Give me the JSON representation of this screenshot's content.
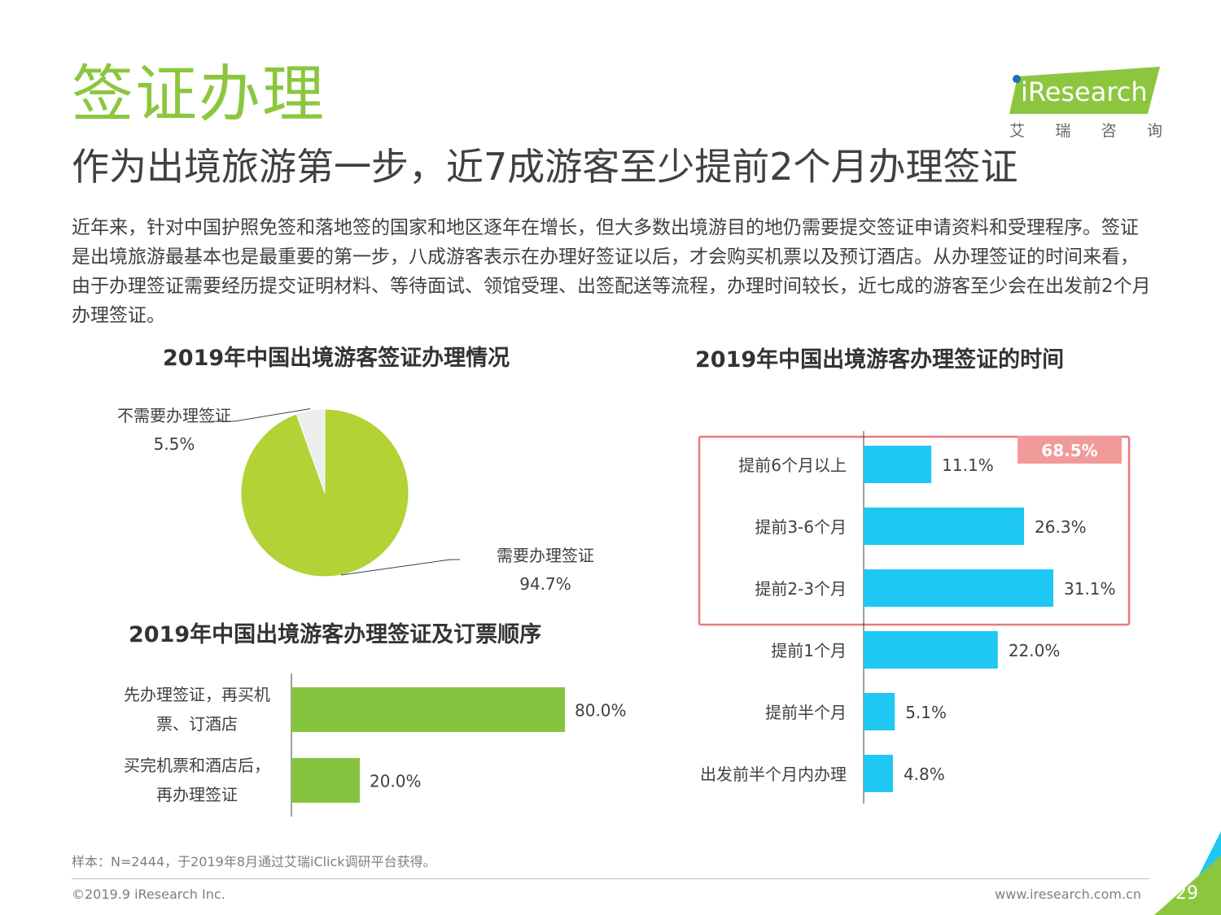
{
  "header": {
    "section_title": "签证办理",
    "headline": "作为出境旅游第一步，近7成游客至少提前2个月办理签证",
    "body": "近年来，针对中国护照免签和落地签的国家和地区逐年在增长，但大多数出境游目的地仍需要提交签证申请资料和受理程序。签证是出境旅游最基本也是最重要的第一步，八成游客表示在办理好签证以后，才会购买机票以及预订酒店。从办理签证的时间来看，由于办理签证需要经历提交证明材料、等待面试、领馆受理、出签配送等流程，办理时间较长，近七成的游客至少会在出发前2个月办理签证。"
  },
  "logo": {
    "brand": "iResearch",
    "sub": [
      "艾",
      "瑞",
      "咨",
      "询"
    ]
  },
  "colors": {
    "green": "#8cc63f",
    "pie_green": "#b2d235",
    "pie_gray": "#eeeeee",
    "cyan": "#1ec8f2",
    "bar_green": "#86c440",
    "highlight_red": "#f19a9a",
    "highlight_border": "#e87979"
  },
  "chart_data": [
    {
      "type": "pie",
      "title": "2019年中国出境游客签证办理情况",
      "labels": [
        "需要办理签证",
        "不需要办理签证"
      ],
      "values": [
        94.7,
        5.5
      ],
      "value_labels": [
        "94.7%",
        "5.5%"
      ]
    },
    {
      "type": "bar",
      "orientation": "horizontal",
      "title": "2019年中国出境游客办理签证的时间",
      "categories": [
        "提前6个月以上",
        "提前3-6个月",
        "提前2-3个月",
        "提前1个月",
        "提前半个月",
        "出发前半个月内办理"
      ],
      "values": [
        11.1,
        26.3,
        31.1,
        22.0,
        5.1,
        4.8
      ],
      "value_labels": [
        "11.1%",
        "26.3%",
        "31.1%",
        "22.0%",
        "5.1%",
        "4.8%"
      ],
      "xlim": [
        0,
        40
      ],
      "highlight": {
        "categories": [
          "提前6个月以上",
          "提前3-6个月",
          "提前2-3个月"
        ],
        "label": "68.5%"
      }
    },
    {
      "type": "bar",
      "orientation": "horizontal",
      "title": "2019年中国出境游客办理签证及订票顺序",
      "categories": [
        [
          "先办理签证，再买机",
          "票、订酒店"
        ],
        [
          "买完机票和酒店后，",
          "再办理签证"
        ]
      ],
      "values": [
        80.0,
        20.0
      ],
      "value_labels": [
        "80.0%",
        "20.0%"
      ],
      "xlim": [
        0,
        100
      ]
    }
  ],
  "footer": {
    "note": "样本：N=2444，于2019年8月通过艾瑞iClick调研平台获得。",
    "copyright": "©2019.9 iResearch Inc.",
    "url": "www.iresearch.com.cn",
    "page": "29"
  }
}
